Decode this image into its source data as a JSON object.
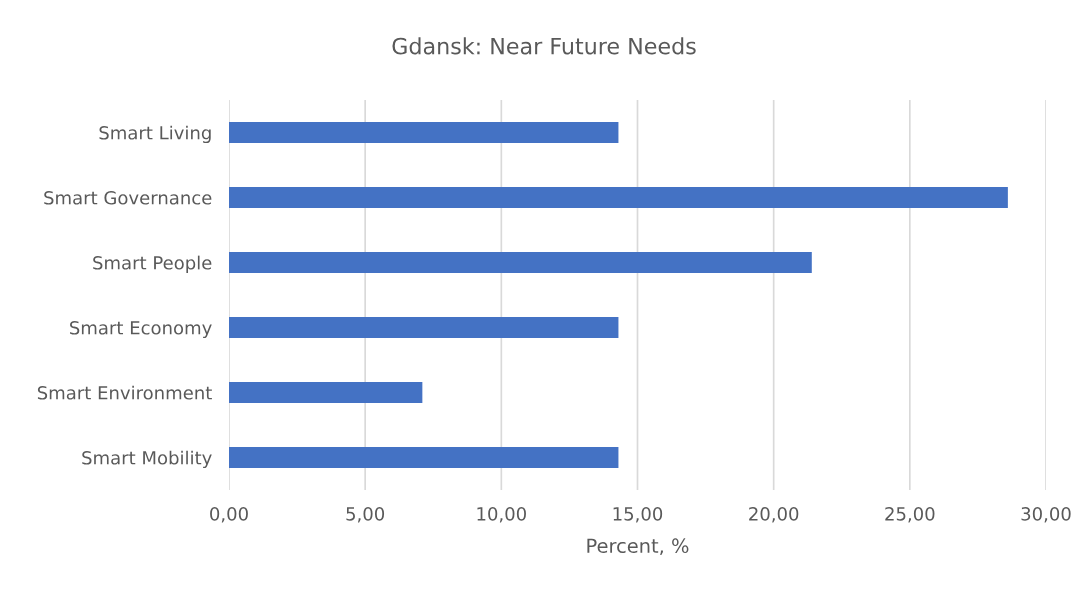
{
  "chart_data": {
    "type": "bar",
    "orientation": "horizontal",
    "title": "Gdansk: Near Future Needs",
    "xlabel": "Percent, %",
    "categories": [
      "Smart Living",
      "Smart Governance",
      "Smart People",
      "Smart Economy",
      "Smart Environment",
      "Smart Mobility"
    ],
    "values": [
      14.3,
      28.6,
      21.4,
      14.3,
      7.1,
      14.3
    ],
    "color": "#4472c4",
    "xlim": [
      0,
      30
    ],
    "xticks": [
      {
        "value": 0,
        "label": "0,00"
      },
      {
        "value": 5,
        "label": "5,00"
      },
      {
        "value": 10,
        "label": "10,00"
      },
      {
        "value": 15,
        "label": "15,00"
      },
      {
        "value": 20,
        "label": "20,00"
      },
      {
        "value": 25,
        "label": "25,00"
      },
      {
        "value": 30,
        "label": "30,00"
      }
    ],
    "grid": "x",
    "legend": false
  }
}
